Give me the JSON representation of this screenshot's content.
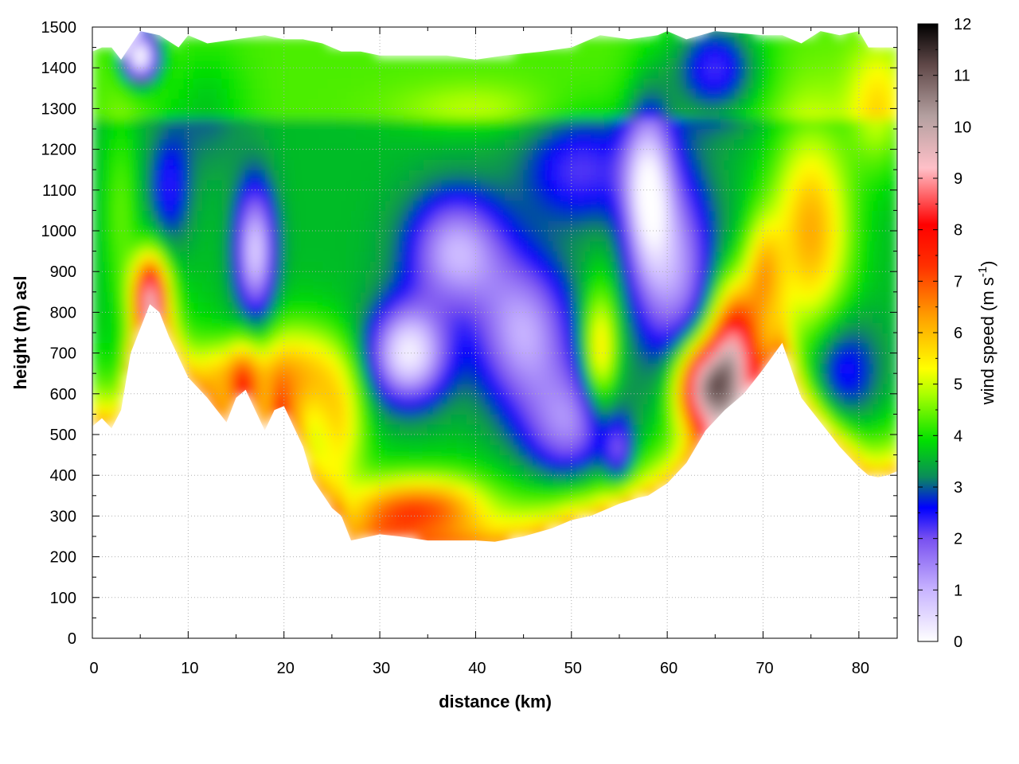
{
  "chart_data": {
    "type": "heatmap",
    "title": "",
    "xlabel": "distance (km)",
    "ylabel": "height (m) asl",
    "colorbar_label": "wind speed (m s",
    "colorbar_label_exp": "-1",
    "colorbar_label_close": ")",
    "xlim": [
      0,
      84
    ],
    "ylim": [
      0,
      1500
    ],
    "clim": [
      0,
      12
    ],
    "xticks": [
      0,
      10,
      20,
      30,
      40,
      50,
      60,
      70,
      80
    ],
    "yticks": [
      0,
      100,
      200,
      300,
      400,
      500,
      600,
      700,
      800,
      900,
      1000,
      1100,
      1200,
      1300,
      1400,
      1500
    ],
    "cticks": [
      0,
      1,
      2,
      3,
      4,
      5,
      6,
      7,
      8,
      9,
      10,
      11,
      12
    ],
    "grid": true,
    "colormap": [
      {
        "v": 0,
        "c": "#ffffff"
      },
      {
        "v": 1,
        "c": "#c8b4ff"
      },
      {
        "v": 2,
        "c": "#7850f0"
      },
      {
        "v": 2.6,
        "c": "#0000ff"
      },
      {
        "v": 3.2,
        "c": "#0a8c5a"
      },
      {
        "v": 3.9,
        "c": "#00e000"
      },
      {
        "v": 4.8,
        "c": "#aaff00"
      },
      {
        "v": 5.3,
        "c": "#ffff00"
      },
      {
        "v": 6.3,
        "c": "#ffa000"
      },
      {
        "v": 7.3,
        "c": "#ff3000"
      },
      {
        "v": 8.1,
        "c": "#ff0000"
      },
      {
        "v": 9.2,
        "c": "#ffc0c8"
      },
      {
        "v": 10.2,
        "c": "#b4a0a0"
      },
      {
        "v": 11.2,
        "c": "#604848"
      },
      {
        "v": 12,
        "c": "#000000"
      }
    ],
    "terrain": [
      [
        0,
        520
      ],
      [
        1,
        540
      ],
      [
        2,
        515
      ],
      [
        3,
        560
      ],
      [
        4,
        700
      ],
      [
        6,
        820
      ],
      [
        7,
        800
      ],
      [
        8,
        740
      ],
      [
        10,
        640
      ],
      [
        12,
        590
      ],
      [
        14,
        530
      ],
      [
        15,
        590
      ],
      [
        16,
        610
      ],
      [
        18,
        510
      ],
      [
        19,
        560
      ],
      [
        20,
        570
      ],
      [
        22,
        470
      ],
      [
        23,
        390
      ],
      [
        25,
        320
      ],
      [
        26,
        300
      ],
      [
        27,
        240
      ],
      [
        28,
        245
      ],
      [
        30,
        255
      ],
      [
        32,
        250
      ],
      [
        35,
        240
      ],
      [
        40,
        240
      ],
      [
        42,
        237
      ],
      [
        45,
        250
      ],
      [
        48,
        270
      ],
      [
        50,
        290
      ],
      [
        52,
        300
      ],
      [
        55,
        330
      ],
      [
        57,
        345
      ],
      [
        58,
        350
      ],
      [
        60,
        380
      ],
      [
        62,
        430
      ],
      [
        64,
        510
      ],
      [
        66,
        560
      ],
      [
        68,
        600
      ],
      [
        70,
        660
      ],
      [
        72,
        725
      ],
      [
        74,
        590
      ],
      [
        76,
        530
      ],
      [
        78,
        470
      ],
      [
        80,
        420
      ],
      [
        81,
        400
      ],
      [
        82,
        395
      ],
      [
        83,
        400
      ],
      [
        84,
        410
      ]
    ],
    "top_boundary": [
      [
        0,
        1440
      ],
      [
        1,
        1450
      ],
      [
        2,
        1450
      ],
      [
        3,
        1420
      ],
      [
        5,
        1490
      ],
      [
        7,
        1480
      ],
      [
        9,
        1450
      ],
      [
        10,
        1480
      ],
      [
        12,
        1460
      ],
      [
        15,
        1470
      ],
      [
        18,
        1480
      ],
      [
        20,
        1470
      ],
      [
        22,
        1470
      ],
      [
        24,
        1460
      ],
      [
        26,
        1440
      ],
      [
        28,
        1440
      ],
      [
        30,
        1430
      ],
      [
        33,
        1430
      ],
      [
        37,
        1430
      ],
      [
        40,
        1420
      ],
      [
        43,
        1430
      ],
      [
        47,
        1440
      ],
      [
        50,
        1450
      ],
      [
        53,
        1480
      ],
      [
        56,
        1470
      ],
      [
        59,
        1480
      ],
      [
        60,
        1490
      ],
      [
        62,
        1470
      ],
      [
        65,
        1490
      ],
      [
        70,
        1480
      ],
      [
        72,
        1480
      ],
      [
        74,
        1460
      ],
      [
        76,
        1490
      ],
      [
        78,
        1480
      ],
      [
        80,
        1490
      ],
      [
        81,
        1450
      ],
      [
        84,
        1450
      ]
    ]
  }
}
